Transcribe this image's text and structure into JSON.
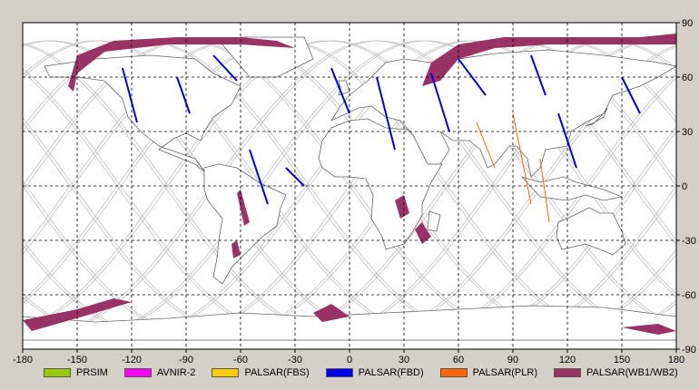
{
  "map": {
    "x_ticks": [
      "-180",
      "-150",
      "-120",
      "-90",
      "-60",
      "-30",
      "0",
      "30",
      "60",
      "90",
      "120",
      "150",
      "180"
    ],
    "y_ticks": [
      "90",
      "60",
      "30",
      "0",
      "-30",
      "-60",
      "-90"
    ],
    "x_range": [
      -180,
      180
    ],
    "y_range": [
      -90,
      90
    ],
    "grid": "dashed",
    "colors": {
      "land": "#ffffff",
      "coast": "#666666",
      "orbits": "#c0c0c0",
      "grid": "#000000",
      "background": "#d4d0c8"
    }
  },
  "legend": [
    {
      "label": "PRSIM",
      "color": "#99cc00"
    },
    {
      "label": "AVNIR-2",
      "color": "#ff00ff"
    },
    {
      "label": "PALSAR(FBS)",
      "color": "#ffcc00"
    },
    {
      "label": "PALSAR(FBD)",
      "color": "#0000ee"
    },
    {
      "label": "PALSAR(PLR)",
      "color": "#ff6600"
    },
    {
      "label": "PALSAR(WB1/WB2)",
      "color": "#993366"
    }
  ],
  "swaths": {
    "wb": [
      [
        [
          -155,
          55
        ],
        [
          -150,
          72
        ],
        [
          -130,
          80
        ],
        [
          -95,
          82
        ],
        [
          -60,
          82
        ],
        [
          -40,
          80
        ],
        [
          -30,
          76
        ],
        [
          -60,
          78
        ],
        [
          -100,
          78
        ],
        [
          -135,
          74
        ],
        [
          -150,
          62
        ],
        [
          -152,
          52
        ]
      ],
      [
        [
          40,
          55
        ],
        [
          45,
          68
        ],
        [
          60,
          78
        ],
        [
          85,
          82
        ],
        [
          120,
          82
        ],
        [
          160,
          82
        ],
        [
          180,
          84
        ],
        [
          180,
          78
        ],
        [
          150,
          78
        ],
        [
          110,
          78
        ],
        [
          80,
          76
        ],
        [
          60,
          70
        ],
        [
          50,
          58
        ]
      ],
      [
        [
          -180,
          -74
        ],
        [
          -150,
          -68
        ],
        [
          -130,
          -62
        ],
        [
          -120,
          -64
        ],
        [
          -140,
          -70
        ],
        [
          -175,
          -80
        ]
      ],
      [
        [
          -60,
          -2
        ],
        [
          -55,
          -20
        ],
        [
          -58,
          -22
        ],
        [
          -62,
          -4
        ]
      ],
      [
        [
          -62,
          -30
        ],
        [
          -60,
          -38
        ],
        [
          -64,
          -40
        ],
        [
          -65,
          -32
        ]
      ],
      [
        [
          30,
          -5
        ],
        [
          33,
          -15
        ],
        [
          28,
          -18
        ],
        [
          25,
          -8
        ]
      ],
      [
        [
          40,
          -20
        ],
        [
          45,
          -28
        ],
        [
          40,
          -32
        ],
        [
          36,
          -24
        ]
      ],
      [
        [
          150,
          -78
        ],
        [
          170,
          -82
        ],
        [
          180,
          -80
        ],
        [
          170,
          -76
        ]
      ],
      [
        [
          -10,
          -65
        ],
        [
          0,
          -72
        ],
        [
          -15,
          -75
        ],
        [
          -20,
          -70
        ]
      ]
    ],
    "fbd": [
      [
        [
          -95,
          60
        ],
        [
          -88,
          40
        ]
      ],
      [
        [
          -75,
          72
        ],
        [
          -62,
          58
        ]
      ],
      [
        [
          -125,
          65
        ],
        [
          -117,
          35
        ]
      ],
      [
        [
          -10,
          65
        ],
        [
          0,
          40
        ]
      ],
      [
        [
          15,
          60
        ],
        [
          25,
          20
        ]
      ],
      [
        [
          45,
          62
        ],
        [
          55,
          30
        ]
      ],
      [
        [
          60,
          70
        ],
        [
          75,
          50
        ]
      ],
      [
        [
          100,
          72
        ],
        [
          108,
          50
        ]
      ],
      [
        [
          115,
          40
        ],
        [
          125,
          10
        ]
      ],
      [
        [
          150,
          60
        ],
        [
          160,
          40
        ]
      ],
      [
        [
          -55,
          20
        ],
        [
          -45,
          -10
        ]
      ],
      [
        [
          -35,
          10
        ],
        [
          -25,
          0
        ]
      ]
    ],
    "plr": [
      [
        [
          70,
          35
        ],
        [
          80,
          10
        ]
      ],
      [
        [
          90,
          40
        ],
        [
          100,
          -10
        ]
      ],
      [
        [
          105,
          15
        ],
        [
          110,
          -20
        ]
      ]
    ]
  }
}
